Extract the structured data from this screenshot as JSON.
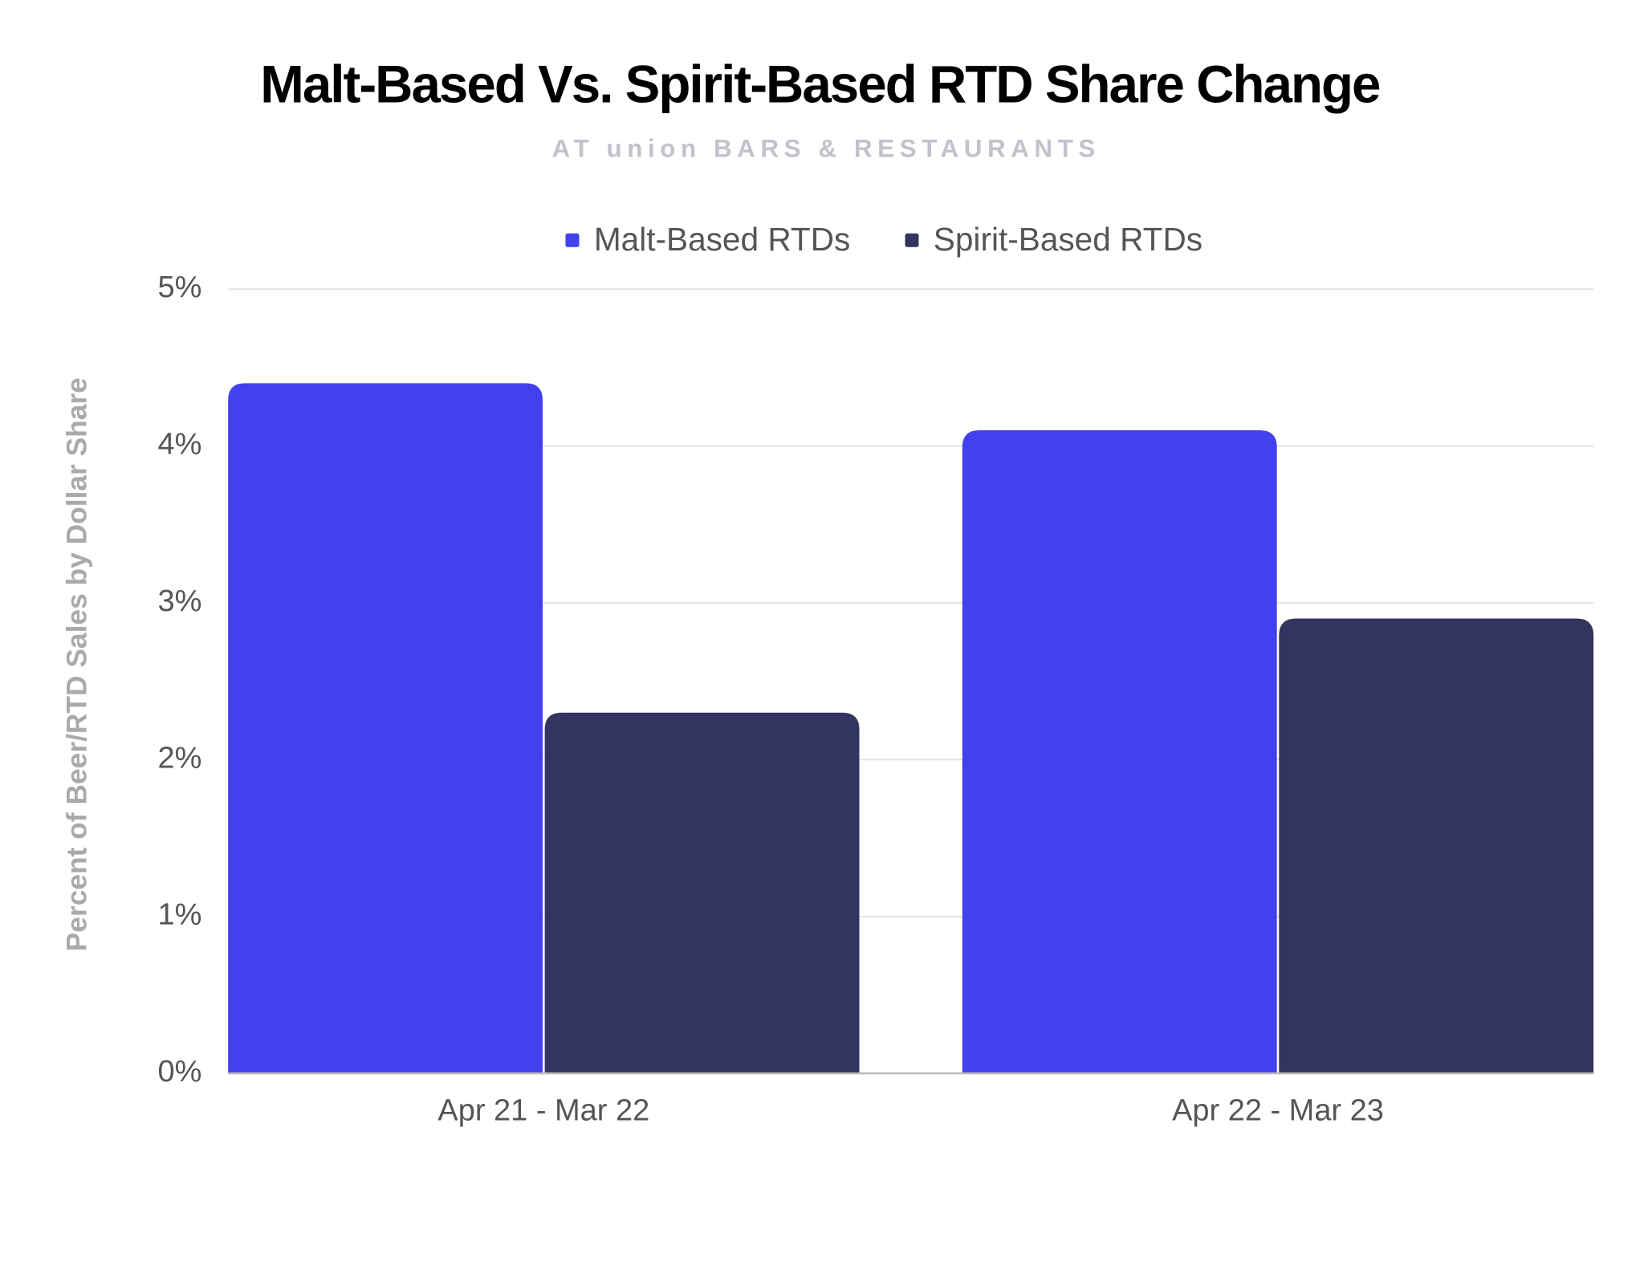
{
  "chart_data": {
    "type": "bar",
    "title": "Malt-Based Vs. Spirit-Based RTD Share Change",
    "subtitle": "AT union BARS & RESTAURANTS",
    "y_label": "Percent of Beer/RTD Sales by Dollar Share",
    "categories": [
      "Apr 21 - Mar 22",
      "Apr 22 - Mar 23"
    ],
    "series": [
      {
        "name": "Malt-Based RTDs",
        "color": "#4141ee",
        "values": [
          4.4,
          4.1
        ]
      },
      {
        "name": "Spirit-Based RTDs",
        "color": "#343461",
        "values": [
          2.3,
          2.9
        ]
      }
    ],
    "ylim": [
      0,
      5
    ],
    "yticks": [
      {
        "value": 0,
        "label": "0%"
      },
      {
        "value": 1,
        "label": "1%"
      },
      {
        "value": 2,
        "label": "2%"
      },
      {
        "value": 3,
        "label": "3%"
      },
      {
        "value": 4,
        "label": "4%"
      },
      {
        "value": 5,
        "label": "5%"
      }
    ],
    "grid": true,
    "legend": "top"
  }
}
